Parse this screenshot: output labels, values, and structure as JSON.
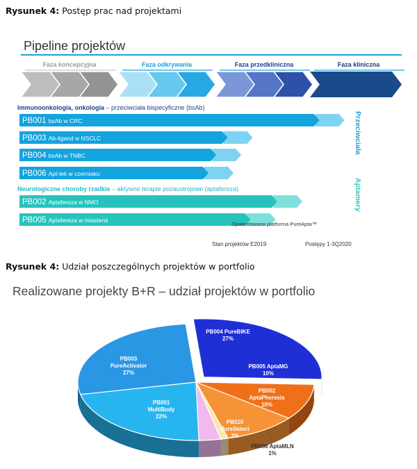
{
  "figure1": {
    "caption_label": "Rysunek 4:",
    "caption_text": "Postęp prac nad projektami",
    "title": "Pipeline projektów",
    "phases": [
      "Faza koncepcyjna",
      "Faza odkrywania",
      "Faza przedkliniczna",
      "Faza kliniczna"
    ],
    "groups": [
      {
        "heading_bold": "Immunoonkologia, onkologia",
        "heading_rest": " – przeciwciała bispecyficzne (bsAb)",
        "side_label": "Przeciwciała",
        "projects": [
          {
            "code": "PB001",
            "name": "bsAb w CRC",
            "progress": 0.85
          },
          {
            "code": "PB003",
            "name": "Ab-ligand w NSCLC",
            "progress": 0.61
          },
          {
            "code": "PB004",
            "name": "bsAb w TNBC",
            "progress": 0.58
          },
          {
            "code": "PB006",
            "name": "Apt-lek w czerniaku",
            "progress": 0.56
          }
        ]
      },
      {
        "heading_bold": "Neurologiczne choroby rzadkie",
        "heading_rest": " – aktywne terapie pozaustrojowe (aptafereza)",
        "side_label": "Aptamery",
        "projects": [
          {
            "code": "PB002",
            "name": "Aptafereza w NMO",
            "progress": 0.74
          },
          {
            "code": "PB005",
            "name": "Aptafereza w miastenii",
            "progress": 0.67
          }
        ]
      }
    ],
    "platform_note": "Opatentowana platforma PureApta™",
    "footer_left": "Stan projektów E2019",
    "footer_right": "Postępy 1-3Q2020"
  },
  "figure2": {
    "caption_label": "Rysunek 4:",
    "caption_text": "Udział poszczególnych projektów w portfolio"
  },
  "chart_data": {
    "type": "pie",
    "title": "Realizowane projekty B+R – udział projektów w portfolio",
    "slices": [
      {
        "label": "PB004 PureBIKE",
        "value": 27,
        "color": "#1f2fd6"
      },
      {
        "label": "PB005 AptaMG",
        "value": 10,
        "color": "#f0701a"
      },
      {
        "label": "PB002 AptaPheresis",
        "value": 10,
        "color": "#f59336"
      },
      {
        "label": "PB006 AptaMLN",
        "value": 1,
        "color": "#f7e7b0"
      },
      {
        "label": "PB010 PureSelect",
        "value": 3,
        "color": "#f2b9ee"
      },
      {
        "label": "PB001 MultiBody",
        "value": 22,
        "color": "#27b5f0"
      },
      {
        "label": "PB003 PureActivator",
        "value": 27,
        "color": "#2a97e4"
      }
    ],
    "value_suffix": "%"
  }
}
